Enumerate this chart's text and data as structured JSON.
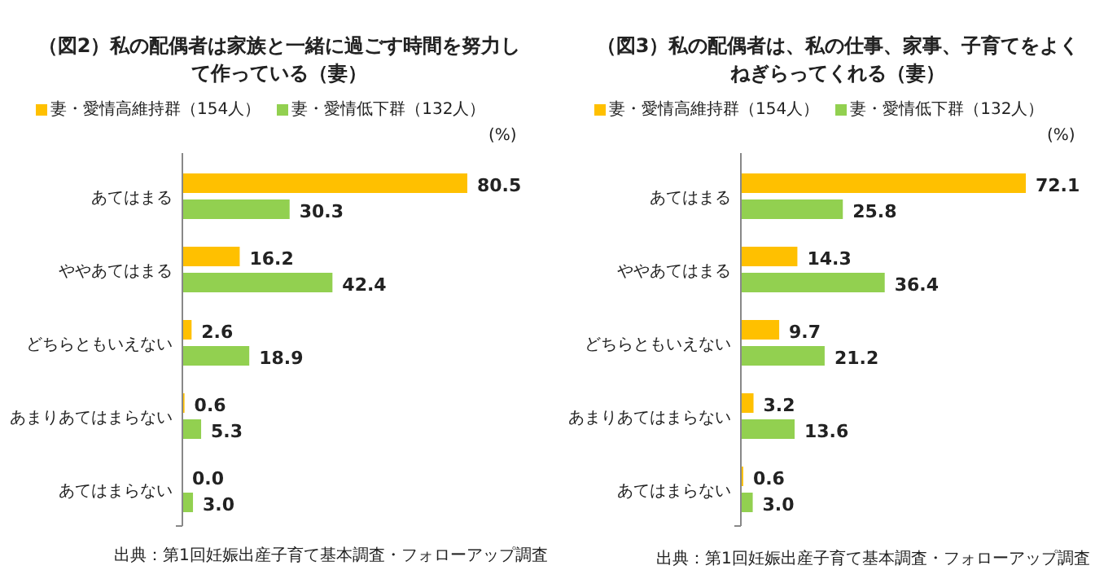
{
  "chart_data": [
    {
      "type": "bar",
      "orientation": "horizontal",
      "title": "（図2）私の配偶者は家族と一緒に過ごす時間を努力して作っている（妻）",
      "categories": [
        "あてはまる",
        "ややあてはまる",
        "どちらともいえない",
        "あまりあてはまらない",
        "あてはまらない"
      ],
      "series": [
        {
          "name": "妻・愛情高維持群（154人）",
          "color": "#ffc000",
          "values": [
            80.5,
            16.2,
            2.6,
            0.6,
            0.0
          ],
          "value_labels": [
            "80.5",
            "16.2",
            "2.6",
            "0.6",
            "0.0"
          ]
        },
        {
          "name": "妻・愛情低下群（132人）",
          "color": "#92d050",
          "values": [
            30.3,
            42.4,
            18.9,
            5.3,
            3.0
          ],
          "value_labels": [
            "30.3",
            "42.4",
            "18.9",
            "5.3",
            "3.0"
          ]
        }
      ],
      "legend": "top",
      "annotations": [
        "(%)",
        "出典：第1回妊娠出産子育て基本調査・フォローアップ調査"
      ]
    },
    {
      "type": "bar",
      "orientation": "horizontal",
      "title": "（図3）私の配偶者は、私の仕事、家事、子育てをよくねぎらってくれる（妻）",
      "categories": [
        "あてはまる",
        "ややあてはまる",
        "どちらともいえない",
        "あまりあてはまらない",
        "あてはまらない"
      ],
      "series": [
        {
          "name": "妻・愛情高維持群（154人）",
          "color": "#ffc000",
          "values": [
            72.1,
            14.3,
            9.7,
            3.2,
            0.6
          ],
          "value_labels": [
            "72.1",
            "14.3",
            "9.7",
            "3.2",
            "0.6"
          ]
        },
        {
          "name": "妻・愛情低下群（132人）",
          "color": "#92d050",
          "values": [
            25.8,
            36.4,
            21.2,
            13.6,
            3.0
          ],
          "value_labels": [
            "25.8",
            "36.4",
            "21.2",
            "13.6",
            "3.0"
          ]
        }
      ],
      "legend": "top",
      "annotations": [
        "(%)",
        "出典：第1回妊娠出産子育て基本調査・フォローアップ調査"
      ]
    }
  ]
}
